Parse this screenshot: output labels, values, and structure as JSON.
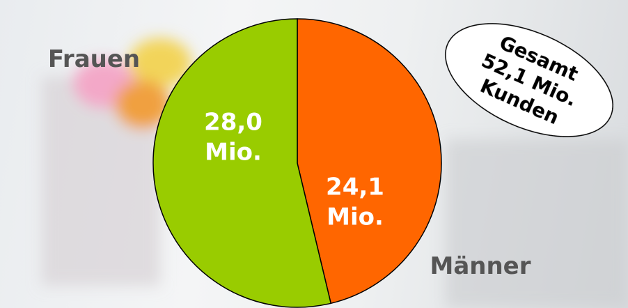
{
  "chart_data": {
    "type": "pie",
    "categories": [
      "Männer",
      "Frauen"
    ],
    "values": [
      24.1,
      28.0
    ],
    "value_labels": [
      "24,1 Mio.",
      "28,0 Mio."
    ],
    "colors": [
      "#ff6600",
      "#99cc00"
    ],
    "annotation": [
      "Gesamt",
      "52,1 Mio.",
      "Kunden"
    ]
  }
}
